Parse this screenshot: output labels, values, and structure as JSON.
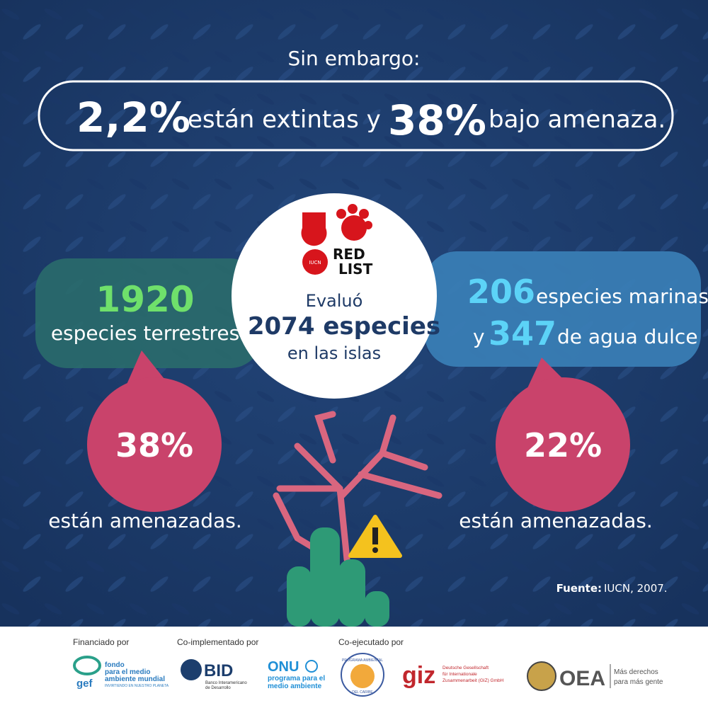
{
  "header": {
    "intro": "Sin embargo:"
  },
  "banner": {
    "extinct_value": "2,2%",
    "extinct_text": "están extintas y",
    "threatened_value": "38%",
    "threatened_text": "bajo amenaza."
  },
  "center": {
    "logo_lines": [
      "RED",
      "LIST"
    ],
    "logo_org": "IUCN",
    "line1": "Evaluó",
    "line2": "2074 especies",
    "line3": "en las islas"
  },
  "left": {
    "count": "1920",
    "label": "especies terrestres",
    "percent": "38%",
    "caption": "están amenazadas."
  },
  "right": {
    "marine_count": "206",
    "marine_label": "especies marinas",
    "connector": "y",
    "freshwater_count": "347",
    "freshwater_label": "de agua dulce",
    "percent": "22%",
    "caption": "están amenazadas."
  },
  "source": {
    "label": "Fuente:",
    "text": "IUCN, 2007."
  },
  "footer": {
    "groups": [
      "Financiado por",
      "Co-implementado por",
      "Co-ejecutado por"
    ],
    "gef": {
      "mark": "gef",
      "lines": [
        "fondo",
        "para el medio",
        "ambiente mundial"
      ],
      "tagline": "INVIRTIENDO EN NUESTRO PLANETA"
    },
    "bid": {
      "mark": "BID",
      "lines": [
        "Banco Interamericano",
        "de Desarrollo"
      ]
    },
    "onu": {
      "mark": "ONU",
      "lines": [
        "programa para el",
        "medio ambiente"
      ]
    },
    "pac": {
      "lines": [
        "PROGRAMA AMBIENTAL",
        "DEL CARIBE"
      ]
    },
    "giz": {
      "mark": "giz",
      "lines": [
        "Deutsche Gesellschaft",
        "für Internationale",
        "Zusammenarbeit (GIZ) GmbH"
      ]
    },
    "oea": {
      "mark": "OEA",
      "lines": [
        "Más derechos",
        "para más gente"
      ]
    }
  }
}
